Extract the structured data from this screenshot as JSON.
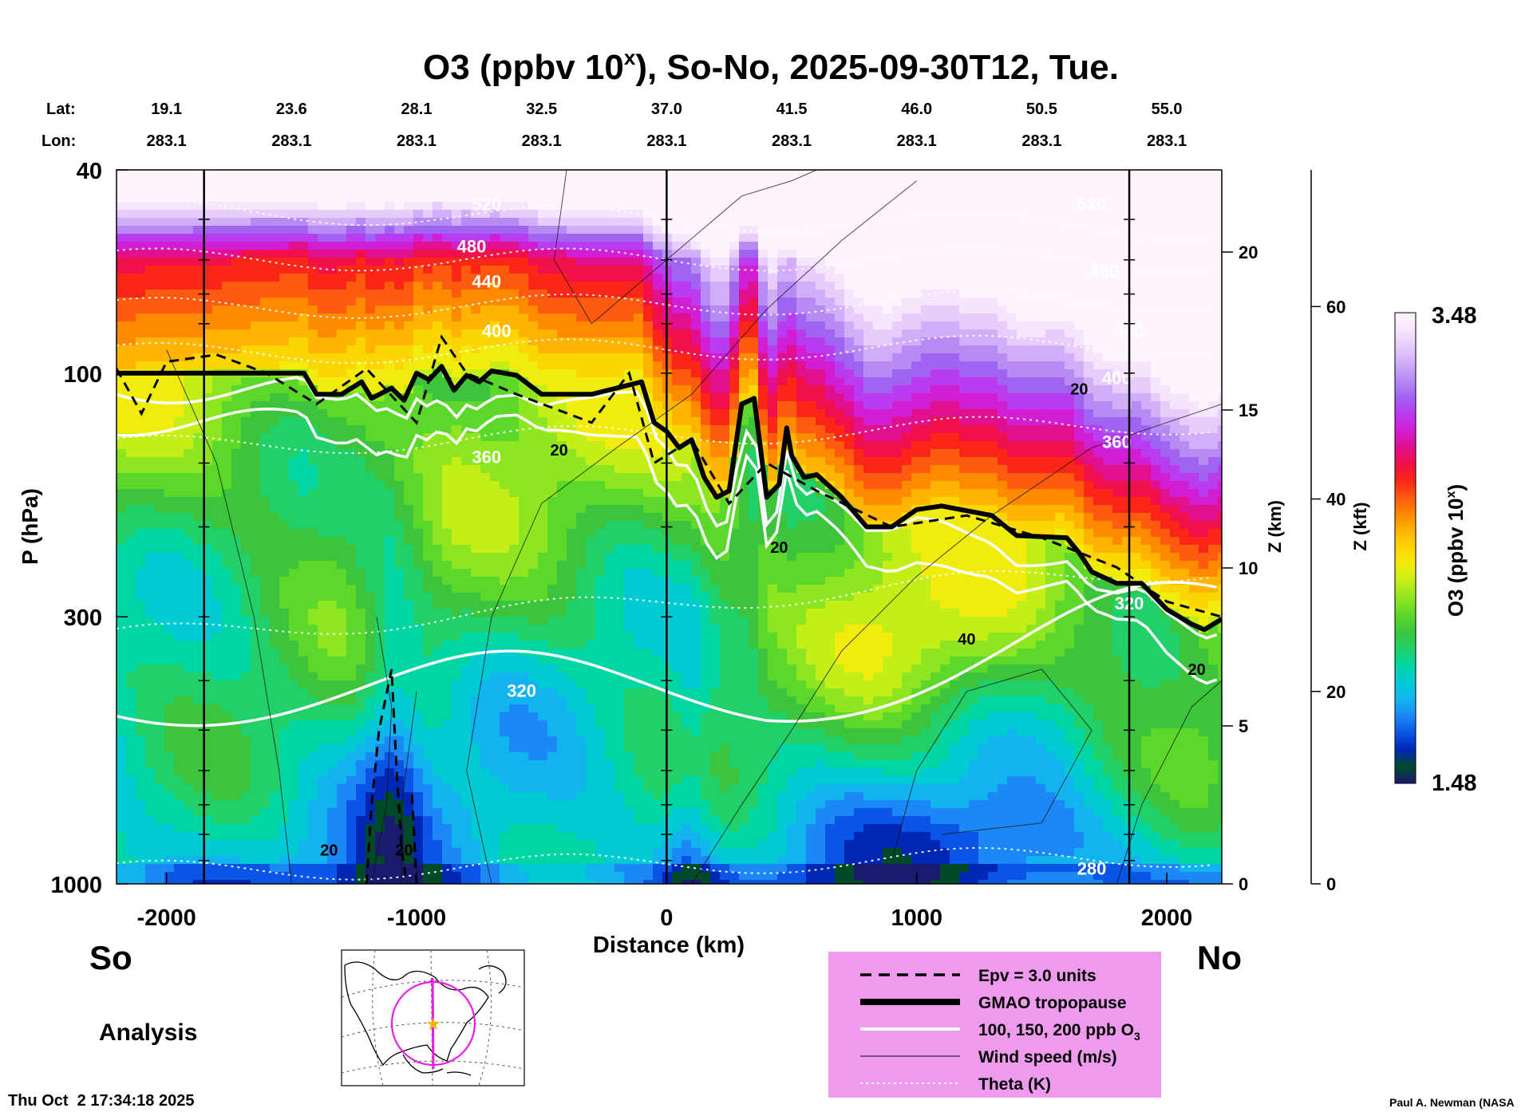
{
  "chart_data": {
    "type": "heatmap",
    "title": "O3 (ppbv 10",
    "title_sup": "x",
    "title_rest": "), So-No, 2025-09-30T12, Tue.",
    "xlabel": "Distance (km)",
    "ylabel": "P (hPa)",
    "z_km_label": "Z (km)",
    "z_kft_label": "Z (kft)",
    "colorbar_label": "O3 (ppbv 10",
    "colorbar_label_sup": "x",
    "colorbar_label_end": ")",
    "colorbar_max": "3.48",
    "colorbar_min": "1.48",
    "xlim": [
      -2200,
      2220
    ],
    "ylim_hpa": [
      1000,
      40
    ],
    "x_ticks": [
      "-2000",
      "-1000",
      "0",
      "1000",
      "2000"
    ],
    "x_tick_values": [
      -2000,
      -1000,
      0,
      1000,
      2000
    ],
    "y_ticks": [
      "40",
      "100",
      "300",
      "1000"
    ],
    "y_tick_values": [
      40,
      100,
      300,
      1000
    ],
    "z_km_ticks": [
      "0",
      "5",
      "10",
      "15",
      "20"
    ],
    "z_km_values": [
      0,
      5,
      10,
      15,
      20
    ],
    "z_kft_ticks": [
      "0",
      "20",
      "40",
      "60"
    ],
    "z_kft_values": [
      0,
      20,
      40,
      60
    ],
    "lat_label": "Lat:",
    "lon_label": "Lon:",
    "lat": [
      "19.1",
      "23.6",
      "28.1",
      "32.5",
      "37.0",
      "41.5",
      "46.0",
      "50.5",
      "55.0"
    ],
    "lon": [
      "283.1",
      "283.1",
      "283.1",
      "283.1",
      "283.1",
      "283.1",
      "283.1",
      "283.1",
      "283.1"
    ],
    "station_distances": [
      -2000,
      -1500,
      -1000,
      -500,
      0,
      500,
      1000,
      1500,
      2000
    ],
    "vertical_lines_km": [
      -1850,
      0,
      1850
    ],
    "tropopause_hpa": [
      [
        -2200,
        100
      ],
      [
        -1450,
        100
      ],
      [
        -1400,
        110
      ],
      [
        -1300,
        110
      ],
      [
        -1220,
        104
      ],
      [
        -1180,
        112
      ],
      [
        -1100,
        107
      ],
      [
        -1050,
        113
      ],
      [
        -1000,
        100
      ],
      [
        -950,
        103
      ],
      [
        -900,
        97
      ],
      [
        -850,
        108
      ],
      [
        -800,
        101
      ],
      [
        -750,
        104
      ],
      [
        -700,
        99
      ],
      [
        -600,
        101
      ],
      [
        -500,
        110
      ],
      [
        -300,
        110
      ],
      [
        -100,
        104
      ],
      [
        -50,
        125
      ],
      [
        0,
        130
      ],
      [
        50,
        140
      ],
      [
        100,
        135
      ],
      [
        150,
        160
      ],
      [
        200,
        175
      ],
      [
        250,
        170
      ],
      [
        300,
        115
      ],
      [
        350,
        112
      ],
      [
        400,
        175
      ],
      [
        450,
        165
      ],
      [
        480,
        128
      ],
      [
        500,
        145
      ],
      [
        550,
        160
      ],
      [
        600,
        158
      ],
      [
        700,
        175
      ],
      [
        800,
        200
      ],
      [
        900,
        200
      ],
      [
        1000,
        185
      ],
      [
        1100,
        182
      ],
      [
        1300,
        190
      ],
      [
        1400,
        208
      ],
      [
        1600,
        210
      ],
      [
        1650,
        225
      ],
      [
        1700,
        245
      ],
      [
        1800,
        258
      ],
      [
        1900,
        258
      ],
      [
        2000,
        290
      ],
      [
        2100,
        310
      ],
      [
        2150,
        318
      ],
      [
        2220,
        303
      ]
    ],
    "contour_labels": {
      "theta": [
        "520",
        "480",
        "440",
        "400",
        "360",
        "320",
        "280",
        "520",
        "480",
        "440",
        "400",
        "360",
        "320"
      ],
      "wind": [
        "20",
        "20",
        "20",
        "20",
        "20",
        "40",
        "20"
      ]
    },
    "legend": [
      {
        "label": "Epv = 3.0 units",
        "style": "dashed"
      },
      {
        "label": "GMAO tropopause",
        "style": "thick"
      },
      {
        "label": "100, 150, 200 ppb O",
        "sub": "3",
        "style": "white"
      },
      {
        "label": "Wind speed (m/s)",
        "style": "thin"
      },
      {
        "label": "Theta (K)",
        "style": "dotted"
      }
    ],
    "legend_position": "bottom-right",
    "colorbar_position": "right",
    "colors": {
      "legend_bg": "#ee9bee",
      "ozone_scale": [
        "#1a1a6e",
        "#004a2a",
        "#0026b4",
        "#0a55e6",
        "#1c88f5",
        "#12b4f0",
        "#00cad4",
        "#00d6a4",
        "#22d06a",
        "#3cc43c",
        "#5bd82a",
        "#8ee620",
        "#c4ee18",
        "#f2ec0c",
        "#fcd600",
        "#feb400",
        "#fe8a00",
        "#fe5a10",
        "#fa2618",
        "#f0104a",
        "#e0108e",
        "#d21ed2",
        "#ba3cf0",
        "#a064f0",
        "#b68cf4",
        "#d2aef8",
        "#e8ccfb",
        "#f6e6fd",
        "#fdf4fe"
      ]
    }
  },
  "footer": {
    "so": "So",
    "no": "No",
    "analysis": "Analysis",
    "timestamp": "Thu Oct  2 17:34:18 2025",
    "credit": "Paul A. Newman (NASA"
  }
}
